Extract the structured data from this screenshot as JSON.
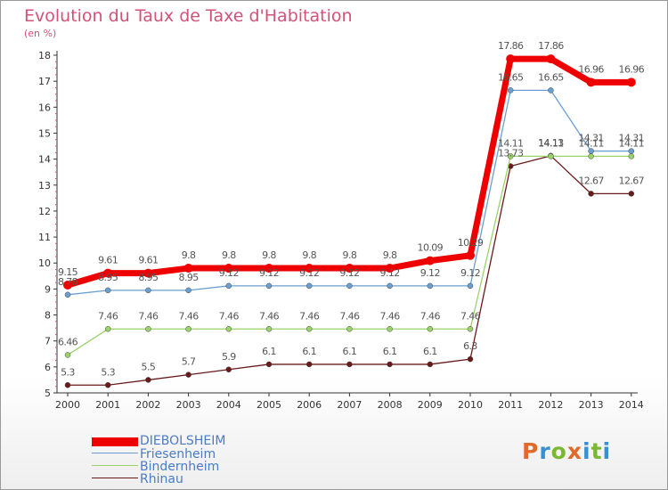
{
  "title": "Evolution du Taux de Taxe d'Habitation",
  "unit": "(en %)",
  "logo": {
    "text": "Proxiti",
    "colors": [
      "#e06a2a",
      "#3a8fd0",
      "#7ab832",
      "#e06a2a",
      "#3a8fd0",
      "#7ab832",
      "#3a8fd0"
    ]
  },
  "chart_data": {
    "type": "line",
    "title": "Evolution du Taux de Taxe d'Habitation",
    "ylabel": "(en %)",
    "xlabel": "",
    "categories": [
      "2000",
      "2001",
      "2002",
      "2003",
      "2004",
      "2005",
      "2006",
      "2007",
      "2008",
      "2009",
      "2010",
      "2011",
      "2012",
      "2013",
      "2014"
    ],
    "ylim": [
      5,
      18
    ],
    "yticks": [
      5,
      6,
      7,
      8,
      9,
      10,
      11,
      12,
      13,
      14,
      15,
      16,
      17,
      18
    ],
    "grid": false,
    "legend_position": "bottom-left",
    "series": [
      {
        "name": "DIEBOLSHEIM",
        "color": "#ee0000",
        "values": [
          9.15,
          9.61,
          9.61,
          9.8,
          9.8,
          9.8,
          9.8,
          9.8,
          9.8,
          10.09,
          10.29,
          17.86,
          17.86,
          16.96,
          16.96
        ],
        "labels": [
          "9.15",
          "9.61",
          "9.61",
          "9.8",
          "9.8",
          "9.8",
          "9.8",
          "9.8",
          "9.8",
          "10.09",
          "10.29",
          "17.86",
          "17.86",
          "16.96",
          "16.96"
        ]
      },
      {
        "name": "Friesenheim",
        "color": "#6a9fd0",
        "values": [
          8.78,
          8.95,
          8.95,
          8.95,
          9.12,
          9.12,
          9.12,
          9.12,
          9.12,
          9.12,
          9.12,
          16.65,
          16.65,
          14.31,
          14.31
        ],
        "labels": [
          "8.78",
          "8.95",
          "8.95",
          "8.95",
          "9.12",
          "9.12",
          "9.12",
          "9.12",
          "9.12",
          "9.12",
          "9.12",
          "16.65",
          "16.65",
          "14.31",
          "14.31"
        ]
      },
      {
        "name": "Bindernheim",
        "color": "#9ad26a",
        "values": [
          6.46,
          7.46,
          7.46,
          7.46,
          7.46,
          7.46,
          7.46,
          7.46,
          7.46,
          7.46,
          7.46,
          14.11,
          14.11,
          14.11,
          14.11
        ],
        "labels": [
          "6.46",
          "7.46",
          "7.46",
          "7.46",
          "7.46",
          "7.46",
          "7.46",
          "7.46",
          "7.46",
          "7.46",
          "7.46",
          "14.11",
          "14.11",
          "14.11",
          "14.11"
        ]
      },
      {
        "name": "Rhinau",
        "color": "#6a1a1a",
        "values": [
          5.3,
          5.3,
          5.5,
          5.7,
          5.9,
          6.1,
          6.1,
          6.1,
          6.1,
          6.1,
          6.3,
          13.73,
          14.13,
          12.67,
          12.67
        ],
        "labels": [
          "5.3",
          "5.3",
          "5.5",
          "5.7",
          "5.9",
          "6.1",
          "6.1",
          "6.1",
          "6.1",
          "6.1",
          "6.3",
          "13.73",
          "14.13",
          "12.67",
          "12.67"
        ]
      }
    ]
  }
}
